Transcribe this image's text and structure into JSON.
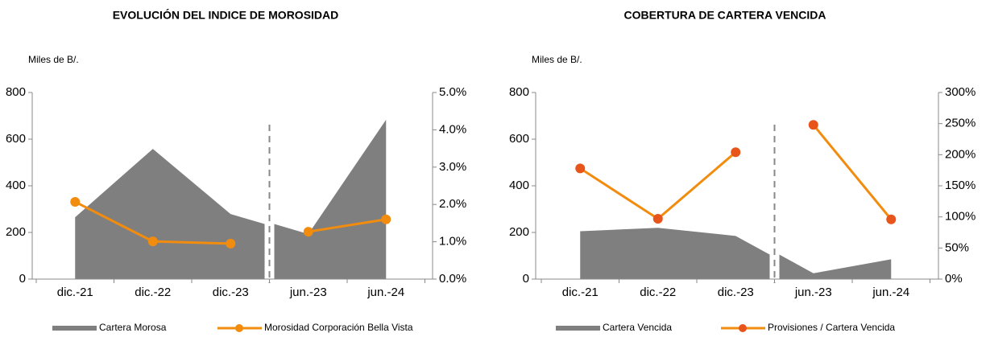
{
  "chart_data": [
    {
      "type": "combo",
      "title": "EVOLUCIÓN DEL INDICE DE MOROSIDAD",
      "y_label": "Miles de B/.",
      "categories": [
        "dic.-21",
        "dic.-22",
        "dic.-23",
        "jun.-23",
        "jun.-24"
      ],
      "ylim": [
        0,
        800
      ],
      "yticks": [
        0,
        200,
        400,
        600,
        800
      ],
      "y2lim": [
        0,
        5
      ],
      "y2ticks": [
        {
          "value": 0,
          "label": "0.0%"
        },
        {
          "value": 1,
          "label": "1.0%"
        },
        {
          "value": 2,
          "label": "2.0%"
        },
        {
          "value": 3,
          "label": "3.0%"
        },
        {
          "value": 4,
          "label": "4.0%"
        },
        {
          "value": 5,
          "label": "5.0%"
        }
      ],
      "series": [
        {
          "name": "Cartera Morosa",
          "type": "area",
          "color": "#7f7f7f",
          "values": [
            265,
            558,
            279,
            193,
            683
          ]
        },
        {
          "name": "Morosidad Corporación Bella Vista",
          "type": "line",
          "axis": "y2",
          "color": "#f28c0f",
          "marker_color": "#f28c0f",
          "values": [
            2.07,
            1.01,
            0.95,
            1.27,
            1.6
          ]
        }
      ]
    },
    {
      "type": "combo",
      "title": "COBERTURA DE CARTERA VENCIDA",
      "y_label": "Miles de B/.",
      "categories": [
        "dic.-21",
        "dic.-22",
        "dic.-23",
        "jun.-23",
        "jun.-24"
      ],
      "ylim": [
        0,
        800
      ],
      "yticks": [
        0,
        200,
        400,
        600,
        800
      ],
      "y2lim": [
        0,
        300
      ],
      "y2ticks": [
        {
          "value": 0,
          "label": "0%"
        },
        {
          "value": 50,
          "label": "50%"
        },
        {
          "value": 100,
          "label": "100%"
        },
        {
          "value": 150,
          "label": "150%"
        },
        {
          "value": 200,
          "label": "200%"
        },
        {
          "value": 250,
          "label": "250%"
        },
        {
          "value": 300,
          "label": "300%"
        }
      ],
      "series": [
        {
          "name": "Cartera Vencida",
          "type": "area",
          "color": "#7f7f7f",
          "values": [
            205,
            220,
            185,
            25,
            85
          ]
        },
        {
          "name": "Provisiones / Cartera Vencida",
          "type": "line",
          "axis": "y2",
          "color": "#f28c0f",
          "marker_color": "#e8551a",
          "values": [
            178,
            97,
            204,
            248,
            96
          ]
        }
      ]
    }
  ]
}
